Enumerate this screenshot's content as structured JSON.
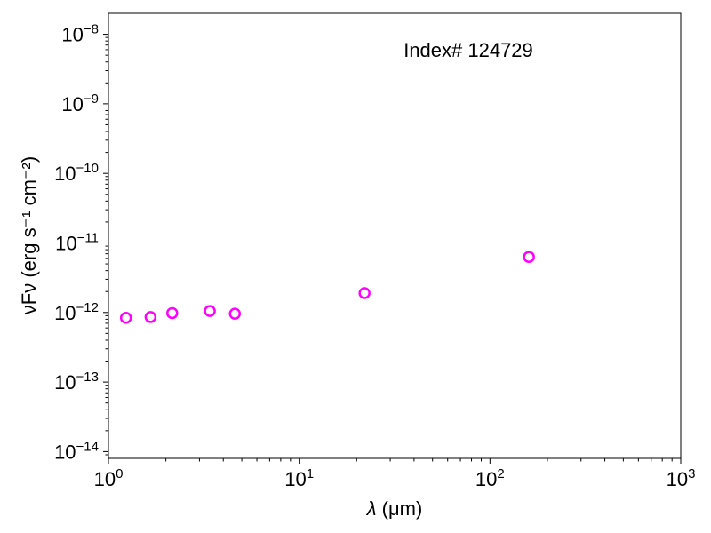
{
  "chart_data": {
    "type": "scatter",
    "annotation": "Index# 124729",
    "xlabel": "λ (μm)",
    "ylabel": "νFν (erg s⁻¹ cm⁻²)",
    "xscale": "log",
    "yscale": "log",
    "xlim": [
      1,
      1000
    ],
    "ylim": [
      8e-15,
      2e-08
    ],
    "xticks": [
      {
        "value": 1,
        "base": "10",
        "exp": "0"
      },
      {
        "value": 10,
        "base": "10",
        "exp": "1"
      },
      {
        "value": 100,
        "base": "10",
        "exp": "2"
      },
      {
        "value": 1000,
        "base": "10",
        "exp": "3"
      }
    ],
    "yticks": [
      {
        "value": 1e-14,
        "base": "10",
        "exp": "−14"
      },
      {
        "value": 1e-13,
        "base": "10",
        "exp": "−13"
      },
      {
        "value": 1e-12,
        "base": "10",
        "exp": "−12"
      },
      {
        "value": 1e-11,
        "base": "10",
        "exp": "−11"
      },
      {
        "value": 1e-10,
        "base": "10",
        "exp": "−10"
      },
      {
        "value": 1e-09,
        "base": "10",
        "exp": "−9"
      },
      {
        "value": 1e-08,
        "base": "10",
        "exp": "−8"
      }
    ],
    "marker": {
      "style": "open-circle",
      "color": "#ff00ff"
    },
    "grid": false,
    "x": [
      1.235,
      1.662,
      2.159,
      3.4,
      4.6,
      22.0,
      160.0
    ],
    "y": [
      8.4e-13,
      8.6e-13,
      9.8e-13,
      1.05e-12,
      9.6e-13,
      1.9e-12,
      6.3e-12
    ]
  }
}
